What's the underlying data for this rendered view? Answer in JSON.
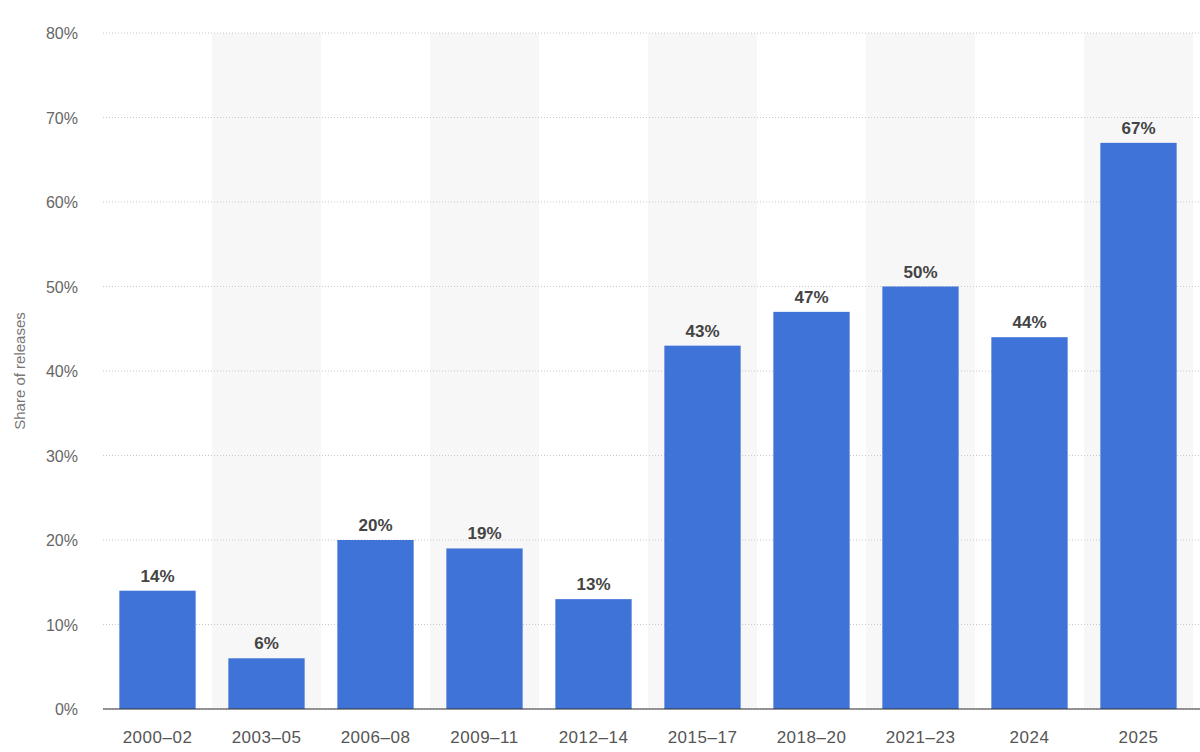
{
  "chart_data": {
    "type": "bar",
    "y_label": "Share of releases",
    "categories": [
      "2000–02",
      "2003–05",
      "2006–08",
      "2009–11",
      "2012–14",
      "2015–17",
      "2018–20",
      "2021–23",
      "2024",
      "2025"
    ],
    "values": [
      14,
      6,
      20,
      19,
      13,
      43,
      47,
      50,
      44,
      67
    ],
    "value_labels": [
      "14%",
      "6%",
      "20%",
      "19%",
      "13%",
      "43%",
      "47%",
      "50%",
      "44%",
      "67%"
    ],
    "color": "#3f73d8",
    "ylim": [
      0,
      80
    ],
    "yticks": [
      {
        "value": 0,
        "label": "0%"
      },
      {
        "value": 10,
        "label": "10%"
      },
      {
        "value": 20,
        "label": "20%"
      },
      {
        "value": 30,
        "label": "30%"
      },
      {
        "value": 40,
        "label": "40%"
      },
      {
        "value": 50,
        "label": "50%"
      },
      {
        "value": 60,
        "label": "60%"
      },
      {
        "value": 70,
        "label": "70%"
      },
      {
        "value": 80,
        "label": "80%"
      }
    ],
    "grid": true,
    "data_labels": true
  }
}
